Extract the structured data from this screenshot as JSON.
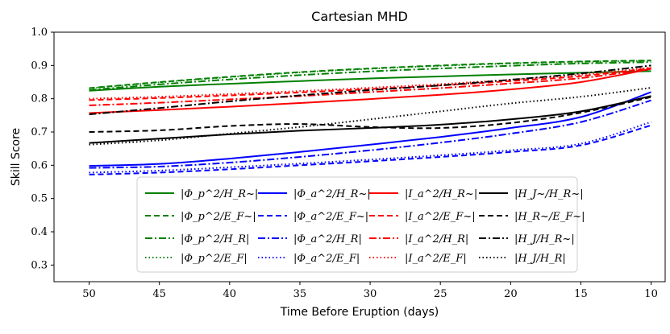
{
  "chart_data": {
    "type": "line",
    "title": "Cartesian MHD",
    "xlabel": "Time Before Eruption (days)",
    "ylabel": "Skill Score",
    "xlim": [
      52.5,
      9
    ],
    "ylim": [
      0.25,
      1.0
    ],
    "xticks": [
      50,
      45,
      40,
      35,
      30,
      25,
      20,
      15,
      10
    ],
    "yticks": [
      0.3,
      0.4,
      0.5,
      0.6,
      0.7,
      0.8,
      0.9,
      1.0
    ],
    "x": [
      50,
      45,
      40,
      35,
      30,
      25,
      20,
      15,
      10
    ],
    "legend_position": "lower-center",
    "series": [
      {
        "name": "|Φ_p^2/H_R~|",
        "color": "#008000",
        "style": "solid",
        "values": [
          0.824,
          0.836,
          0.845,
          0.853,
          0.861,
          0.867,
          0.873,
          0.878,
          0.883
        ]
      },
      {
        "name": "|Φ_p^2/E_F~|",
        "color": "#008000",
        "style": "dashed",
        "values": [
          0.832,
          0.85,
          0.866,
          0.88,
          0.891,
          0.9,
          0.907,
          0.912,
          0.915
        ]
      },
      {
        "name": "|Φ_p^2/H_R|",
        "color": "#008000",
        "style": "dashdot",
        "values": [
          0.826,
          0.843,
          0.858,
          0.871,
          0.882,
          0.891,
          0.899,
          0.906,
          0.91
        ]
      },
      {
        "name": "|Φ_p^2/E_F|",
        "color": "#008000",
        "style": "dotted",
        "values": [
          0.831,
          0.849,
          0.865,
          0.879,
          0.89,
          0.899,
          0.906,
          0.911,
          0.914
        ]
      },
      {
        "name": "|Φ_a^2/H_R~|",
        "color": "#0000ff",
        "style": "solid",
        "values": [
          0.598,
          0.604,
          0.62,
          0.64,
          0.662,
          0.685,
          0.712,
          0.745,
          0.82
        ]
      },
      {
        "name": "|Φ_a^2/E_F~|",
        "color": "#0000ff",
        "style": "dashed",
        "values": [
          0.572,
          0.578,
          0.588,
          0.6,
          0.612,
          0.625,
          0.64,
          0.66,
          0.72
        ]
      },
      {
        "name": "|Φ_a^2/H_R|",
        "color": "#0000ff",
        "style": "dashdot",
        "values": [
          0.592,
          0.596,
          0.608,
          0.625,
          0.645,
          0.668,
          0.695,
          0.73,
          0.795
        ]
      },
      {
        "name": "|Φ_a^2/E_F|",
        "color": "#0000ff",
        "style": "dotted",
        "values": [
          0.578,
          0.584,
          0.594,
          0.605,
          0.617,
          0.63,
          0.645,
          0.665,
          0.73
        ]
      },
      {
        "name": "|I_a^2/H_R~|",
        "color": "#ff0000",
        "style": "solid",
        "values": [
          0.757,
          0.766,
          0.776,
          0.787,
          0.799,
          0.812,
          0.828,
          0.85,
          0.89
        ]
      },
      {
        "name": "|I_a^2/E_F~|",
        "color": "#ff0000",
        "style": "dashed",
        "values": [
          0.796,
          0.802,
          0.81,
          0.819,
          0.829,
          0.84,
          0.853,
          0.868,
          0.892
        ]
      },
      {
        "name": "|I_a^2/H_R|",
        "color": "#ff0000",
        "style": "dashdot",
        "values": [
          0.78,
          0.788,
          0.798,
          0.808,
          0.82,
          0.832,
          0.846,
          0.862,
          0.89
        ]
      },
      {
        "name": "|I_a^2/E_F|",
        "color": "#ff0000",
        "style": "dotted",
        "values": [
          0.8,
          0.806,
          0.814,
          0.823,
          0.833,
          0.844,
          0.857,
          0.872,
          0.894
        ]
      },
      {
        "name": "|H_J~/H_R~|",
        "color": "#000000",
        "style": "solid",
        "values": [
          0.667,
          0.68,
          0.693,
          0.704,
          0.712,
          0.722,
          0.738,
          0.762,
          0.808
        ]
      },
      {
        "name": "|H_R~/E_F~|",
        "color": "#000000",
        "style": "dashed",
        "values": [
          0.7,
          0.705,
          0.718,
          0.724,
          0.715,
          0.712,
          0.727,
          0.758,
          0.805
        ]
      },
      {
        "name": "|H_J/H_R~|",
        "color": "#000000",
        "style": "dashdot",
        "values": [
          0.753,
          0.772,
          0.792,
          0.81,
          0.826,
          0.84,
          0.857,
          0.876,
          0.9
        ]
      },
      {
        "name": "|H_J/H_R|",
        "color": "#000000",
        "style": "dotted",
        "values": [
          0.662,
          0.675,
          0.695,
          0.715,
          0.738,
          0.762,
          0.786,
          0.806,
          0.833
        ]
      }
    ]
  }
}
